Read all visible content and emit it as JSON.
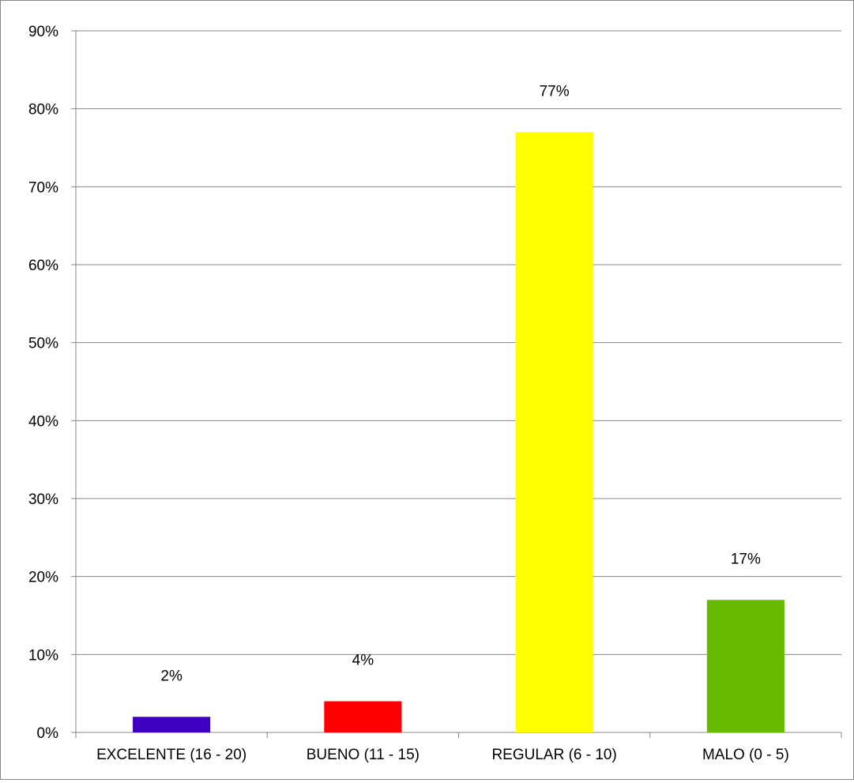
{
  "chart_data": {
    "type": "bar",
    "categories": [
      "EXCELENTE (16 - 20)",
      "BUENO (11 - 15)",
      "REGULAR (6 - 10)",
      "MALO (0 - 5)"
    ],
    "values": [
      2,
      4,
      77,
      17
    ],
    "data_labels": [
      "2%",
      "4%",
      "77%",
      "17%"
    ],
    "colors": [
      "#3f00c4",
      "#ff0000",
      "#ffff00",
      "#66bb00"
    ],
    "ylim": [
      0,
      90
    ],
    "yticks": [
      0,
      10,
      20,
      30,
      40,
      50,
      60,
      70,
      80,
      90
    ],
    "ytick_labels": [
      "0%",
      "10%",
      "20%",
      "30%",
      "40%",
      "50%",
      "60%",
      "70%",
      "80%",
      "90%"
    ],
    "grid": true,
    "legend": "none",
    "title": "",
    "xlabel": "",
    "ylabel": ""
  }
}
